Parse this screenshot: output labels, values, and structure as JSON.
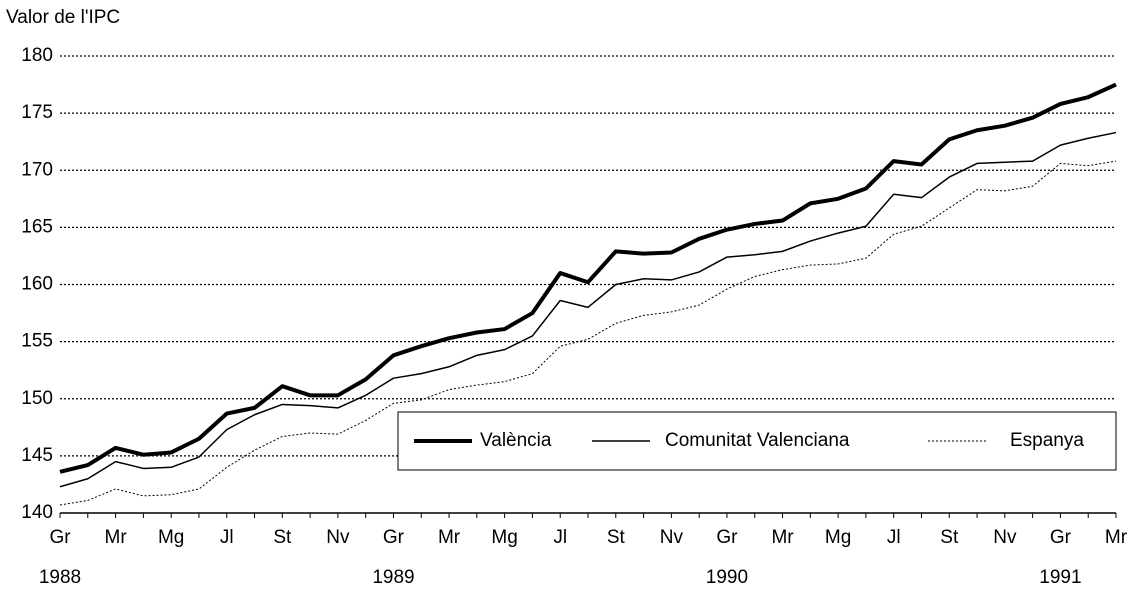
{
  "chart_data": {
    "type": "line",
    "y_axis_title": "Valor de l'IPC",
    "categories": [
      "Gr",
      null,
      "Mr",
      null,
      "Mg",
      null,
      "Jl",
      null,
      "St",
      null,
      "Nv",
      null,
      "Gr",
      null,
      "Mr",
      null,
      "Mg",
      null,
      "Jl",
      null,
      "St",
      null,
      "Nv",
      null,
      "Gr",
      null,
      "Mr",
      null,
      "Mg",
      null,
      "Jl",
      null,
      "St",
      null,
      "Nv",
      null,
      "Gr",
      null,
      "Mr"
    ],
    "years": [
      "1988",
      null,
      null,
      null,
      null,
      null,
      null,
      null,
      null,
      null,
      null,
      null,
      "1989",
      null,
      null,
      null,
      null,
      null,
      null,
      null,
      null,
      null,
      null,
      null,
      "1990",
      null,
      null,
      null,
      null,
      null,
      null,
      null,
      null,
      null,
      null,
      null,
      "1991",
      null,
      null
    ],
    "series": [
      {
        "name": "València",
        "color": "#000000",
        "line_width": 4,
        "dash": "none",
        "values": [
          143.6,
          144.2,
          145.7,
          145.1,
          145.3,
          146.5,
          148.7,
          149.2,
          151.1,
          150.3,
          150.3,
          151.7,
          153.8,
          154.6,
          155.3,
          155.8,
          156.1,
          157.5,
          161.0,
          160.2,
          162.9,
          162.7,
          162.8,
          164.0,
          164.8,
          165.3,
          165.6,
          167.1,
          167.5,
          168.4,
          170.8,
          170.5,
          172.7,
          173.5,
          173.9,
          174.6,
          175.8,
          176.4,
          177.5
        ]
      },
      {
        "name": "Comunitat Valenciana",
        "color": "#000000",
        "line_width": 1.5,
        "dash": "none",
        "values": [
          142.3,
          143.0,
          144.5,
          143.9,
          144.0,
          144.9,
          147.3,
          148.6,
          149.5,
          149.4,
          149.2,
          150.3,
          151.8,
          152.2,
          152.8,
          153.8,
          154.3,
          155.5,
          158.6,
          158.0,
          160.0,
          160.5,
          160.4,
          161.1,
          162.4,
          162.6,
          162.9,
          163.8,
          164.5,
          165.1,
          167.9,
          167.6,
          169.4,
          170.6,
          170.7,
          170.8,
          172.2,
          172.8,
          173.3
        ]
      },
      {
        "name": "Espanya",
        "color": "#000000",
        "line_width": 1,
        "dash": "2,2",
        "values": [
          140.7,
          141.1,
          142.1,
          141.5,
          141.6,
          142.1,
          144.0,
          145.5,
          146.7,
          147.0,
          146.9,
          148.1,
          149.6,
          149.9,
          150.8,
          151.2,
          151.5,
          152.2,
          154.6,
          155.2,
          156.6,
          157.3,
          157.6,
          158.2,
          159.6,
          160.7,
          161.3,
          161.7,
          161.8,
          162.3,
          164.4,
          165.1,
          166.7,
          168.3,
          168.2,
          168.6,
          170.6,
          170.4,
          170.8
        ]
      }
    ],
    "ylim": [
      140,
      180
    ],
    "yticks": [
      140,
      145,
      150,
      155,
      160,
      165,
      170,
      175,
      180
    ],
    "grid": true,
    "legend": "lower right"
  }
}
